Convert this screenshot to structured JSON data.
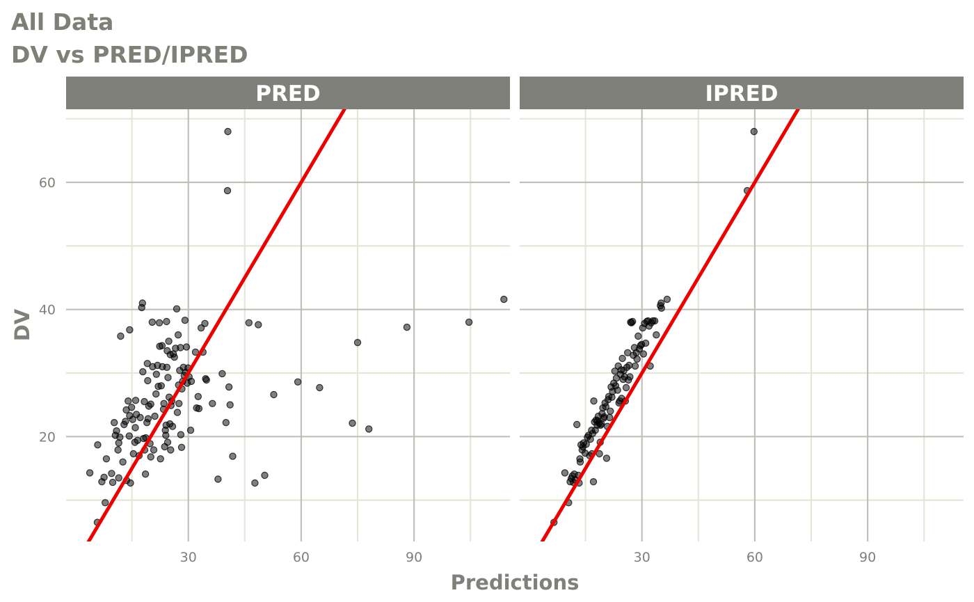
{
  "title": "All Data",
  "subtitle": "DV vs PRED/IPRED",
  "colors": {
    "strip_bg": "#80807a",
    "strip_text": "#ffffff",
    "grid_major": "#c0c0b8",
    "grid_minor": "#e4e6d8",
    "axis_text": "#80807a",
    "identity_line": "#ee0000",
    "points": "#000000"
  },
  "chart_data": {
    "type": "scatter",
    "xlabel": "Predictions",
    "ylabel": "DV",
    "xlim": [
      -2.5,
      115.5
    ],
    "ylim": [
      3.5,
      71.5
    ],
    "x_ticks": [
      30,
      60,
      90
    ],
    "y_ticks": [
      20,
      40,
      60
    ],
    "grid": true,
    "reference_line": "y = x",
    "panels": [
      {
        "name": "PRED",
        "points": [
          [
            3.8,
            14.3
          ],
          [
            5.9,
            18.7
          ],
          [
            5.8,
            6.5
          ],
          [
            7.0,
            12.9
          ],
          [
            7.9,
            9.6
          ],
          [
            7.6,
            13.6
          ],
          [
            8.2,
            16.5
          ],
          [
            9.6,
            14.2
          ],
          [
            9.9,
            12.8
          ],
          [
            10.3,
            22.2
          ],
          [
            10.6,
            20.2
          ],
          [
            10.9,
            20.9
          ],
          [
            11.3,
            17.9
          ],
          [
            11.5,
            19.0
          ],
          [
            11.8,
            19.9
          ],
          [
            11.5,
            13.5
          ],
          [
            12.0,
            35.8
          ],
          [
            12.6,
            16.0
          ],
          [
            12.9,
            21.9
          ],
          [
            13.3,
            22.4
          ],
          [
            13.6,
            13.1
          ],
          [
            13.5,
            24.2
          ],
          [
            14.0,
            25.6
          ],
          [
            14.3,
            20.1
          ],
          [
            14.4,
            36.8
          ],
          [
            14.6,
            12.7
          ],
          [
            14.4,
            23.3
          ],
          [
            14.9,
            24.6
          ],
          [
            15.2,
            22.7
          ],
          [
            15.4,
            17.3
          ],
          [
            15.8,
            19.1
          ],
          [
            15.9,
            21.4
          ],
          [
            16.0,
            25.7
          ],
          [
            16.2,
            23.5
          ],
          [
            16.5,
            19.4
          ],
          [
            16.9,
            17.0
          ],
          [
            17.2,
            23.0
          ],
          [
            17.6,
            40.3
          ],
          [
            17.8,
            41.0
          ],
          [
            17.9,
            30.2
          ],
          [
            18.1,
            19.7
          ],
          [
            18.3,
            25.5
          ],
          [
            18.4,
            17.9
          ],
          [
            18.6,
            14.1
          ],
          [
            18.7,
            19.8
          ],
          [
            19.0,
            22.2
          ],
          [
            19.1,
            31.5
          ],
          [
            19.2,
            28.8
          ],
          [
            19.3,
            22.8
          ],
          [
            19.5,
            24.8
          ],
          [
            19.8,
            18.9
          ],
          [
            20.0,
            25.1
          ],
          [
            20.0,
            16.8
          ],
          [
            20.4,
            38.0
          ],
          [
            20.5,
            31.0
          ],
          [
            20.8,
            17.9
          ],
          [
            21.1,
            23.2
          ],
          [
            21.4,
            26.7
          ],
          [
            21.5,
            29.8
          ],
          [
            21.8,
            31.2
          ],
          [
            22.0,
            27.9
          ],
          [
            22.3,
            37.9
          ],
          [
            22.4,
            34.2
          ],
          [
            22.6,
            16.5
          ],
          [
            22.8,
            28.0
          ],
          [
            23.0,
            34.3
          ],
          [
            23.1,
            31.0
          ],
          [
            23.4,
            24.3
          ],
          [
            23.5,
            25.2
          ],
          [
            23.7,
            18.4
          ],
          [
            23.9,
            21.0
          ],
          [
            24.0,
            20.2
          ],
          [
            24.1,
            21.8
          ],
          [
            24.2,
            38.1
          ],
          [
            24.3,
            30.9
          ],
          [
            24.4,
            33.5
          ],
          [
            24.5,
            19.1
          ],
          [
            24.6,
            29.3
          ],
          [
            24.8,
            35.0
          ],
          [
            24.9,
            26.2
          ],
          [
            25.1,
            22.0
          ],
          [
            25.2,
            32.9
          ],
          [
            25.3,
            17.9
          ],
          [
            25.4,
            24.9
          ],
          [
            25.6,
            25.6
          ],
          [
            25.8,
            21.6
          ],
          [
            26.0,
            33.0
          ],
          [
            26.3,
            32.5
          ],
          [
            26.6,
            33.9
          ],
          [
            26.9,
            40.1
          ],
          [
            27.1,
            23.8
          ],
          [
            27.3,
            36.0
          ],
          [
            27.4,
            28.1
          ],
          [
            27.5,
            25.2
          ],
          [
            27.7,
            30.4
          ],
          [
            27.9,
            34.0
          ],
          [
            28.0,
            20.3
          ],
          [
            28.2,
            18.3
          ],
          [
            28.3,
            27.5
          ],
          [
            28.5,
            28.7
          ],
          [
            28.7,
            30.9
          ],
          [
            28.9,
            29.6
          ],
          [
            29.1,
            38.3
          ],
          [
            29.3,
            30.1
          ],
          [
            29.5,
            34.1
          ],
          [
            29.7,
            28.4
          ],
          [
            29.9,
            30.8
          ],
          [
            30.2,
            29.4
          ],
          [
            30.6,
            21.0
          ],
          [
            30.8,
            28.7
          ],
          [
            31.9,
            33.3
          ],
          [
            32.2,
            24.5
          ],
          [
            32.6,
            26.3
          ],
          [
            32.8,
            24.4
          ],
          [
            33.4,
            37.1
          ],
          [
            33.9,
            33.3
          ],
          [
            34.4,
            37.8
          ],
          [
            34.6,
            29.1
          ],
          [
            34.8,
            28.9
          ],
          [
            36.4,
            25.2
          ],
          [
            37.9,
            13.3
          ],
          [
            39.0,
            29.9
          ],
          [
            40.0,
            22.2
          ],
          [
            40.4,
            58.7
          ],
          [
            40.5,
            68.0
          ],
          [
            40.8,
            27.8
          ],
          [
            41.1,
            25.0
          ],
          [
            41.8,
            16.9
          ],
          [
            46.1,
            37.9
          ],
          [
            47.7,
            12.7
          ],
          [
            48.6,
            37.6
          ],
          [
            50.3,
            13.9
          ],
          [
            52.7,
            26.6
          ],
          [
            59.1,
            28.6
          ],
          [
            64.9,
            27.7
          ],
          [
            73.6,
            22.1
          ],
          [
            75.0,
            34.8
          ],
          [
            78.0,
            21.2
          ],
          [
            88.1,
            37.2
          ],
          [
            104.6,
            38.0
          ],
          [
            113.9,
            41.6
          ]
        ]
      },
      {
        "name": "IPRED",
        "points": [
          [
            6.6,
            6.5
          ],
          [
            9.5,
            14.3
          ],
          [
            10.5,
            9.6
          ],
          [
            10.9,
            12.9
          ],
          [
            11.2,
            13.4
          ],
          [
            11.5,
            13.8
          ],
          [
            11.8,
            12.8
          ],
          [
            12.0,
            14.1
          ],
          [
            12.3,
            13.2
          ],
          [
            12.7,
            21.9
          ],
          [
            13.1,
            13.9
          ],
          [
            13.3,
            12.7
          ],
          [
            13.5,
            16.5
          ],
          [
            13.6,
            16.0
          ],
          [
            13.8,
            18.7
          ],
          [
            14.1,
            17.9
          ],
          [
            14.3,
            18.4
          ],
          [
            14.5,
            19.0
          ],
          [
            14.9,
            17.4
          ],
          [
            15.2,
            18.8
          ],
          [
            15.5,
            19.9
          ],
          [
            15.8,
            20.2
          ],
          [
            16.1,
            17.0
          ],
          [
            16.3,
            19.6
          ],
          [
            16.6,
            21.0
          ],
          [
            16.7,
            17.3
          ],
          [
            16.9,
            20.5
          ],
          [
            17.1,
            12.9
          ],
          [
            17.2,
            25.6
          ],
          [
            17.4,
            22.3
          ],
          [
            17.6,
            21.0
          ],
          [
            17.8,
            22.6
          ],
          [
            18.1,
            21.8
          ],
          [
            18.2,
            22.5
          ],
          [
            18.4,
            23.2
          ],
          [
            18.6,
            22.1
          ],
          [
            18.7,
            17.3
          ],
          [
            18.9,
            19.1
          ],
          [
            19.0,
            21.8
          ],
          [
            19.2,
            22.0
          ],
          [
            19.4,
            23.6
          ],
          [
            19.6,
            24.5
          ],
          [
            19.8,
            22.9
          ],
          [
            20.0,
            23.1
          ],
          [
            20.2,
            25.3
          ],
          [
            20.4,
            24.7
          ],
          [
            20.6,
            16.6
          ],
          [
            20.8,
            21.6
          ],
          [
            21.0,
            25.8
          ],
          [
            21.2,
            26.3
          ],
          [
            21.4,
            23.0
          ],
          [
            21.6,
            24.0
          ],
          [
            21.8,
            27.8
          ],
          [
            22.0,
            26.2
          ],
          [
            22.2,
            27.1
          ],
          [
            22.5,
            28.4
          ],
          [
            22.8,
            30.3
          ],
          [
            23.0,
            28.0
          ],
          [
            23.2,
            29.2
          ],
          [
            23.5,
            27.3
          ],
          [
            23.7,
            31.1
          ],
          [
            23.9,
            25.3
          ],
          [
            24.1,
            25.6
          ],
          [
            24.3,
            29.8
          ],
          [
            24.5,
            30.5
          ],
          [
            24.6,
            26.0
          ],
          [
            24.8,
            32.3
          ],
          [
            25.0,
            29.0
          ],
          [
            25.2,
            30.4
          ],
          [
            25.4,
            29.4
          ],
          [
            25.6,
            25.6
          ],
          [
            25.8,
            27.7
          ],
          [
            26.0,
            30.9
          ],
          [
            26.2,
            33.2
          ],
          [
            26.4,
            28.9
          ],
          [
            26.6,
            31.2
          ],
          [
            26.8,
            29.4
          ],
          [
            27.0,
            38.0
          ],
          [
            27.2,
            37.9
          ],
          [
            27.5,
            38.1
          ],
          [
            27.7,
            32.8
          ],
          [
            28.0,
            34.0
          ],
          [
            28.2,
            31.1
          ],
          [
            28.5,
            33.2
          ],
          [
            28.7,
            32.2
          ],
          [
            29.0,
            35.8
          ],
          [
            29.3,
            33.8
          ],
          [
            29.6,
            34.3
          ],
          [
            29.9,
            34.5
          ],
          [
            30.2,
            37.1
          ],
          [
            30.4,
            33.0
          ],
          [
            30.7,
            37.8
          ],
          [
            31.0,
            34.7
          ],
          [
            31.3,
            38.1
          ],
          [
            31.6,
            38.2
          ],
          [
            31.9,
            37.4
          ],
          [
            32.2,
            31.1
          ],
          [
            32.5,
            37.9
          ],
          [
            32.9,
            38.2
          ],
          [
            33.4,
            38.2
          ],
          [
            33.8,
            36.0
          ],
          [
            34.9,
            40.6
          ],
          [
            35.1,
            41.0
          ],
          [
            35.2,
            40.2
          ],
          [
            36.7,
            41.6
          ],
          [
            58.0,
            58.7
          ],
          [
            59.8,
            68.0
          ]
        ]
      }
    ]
  }
}
